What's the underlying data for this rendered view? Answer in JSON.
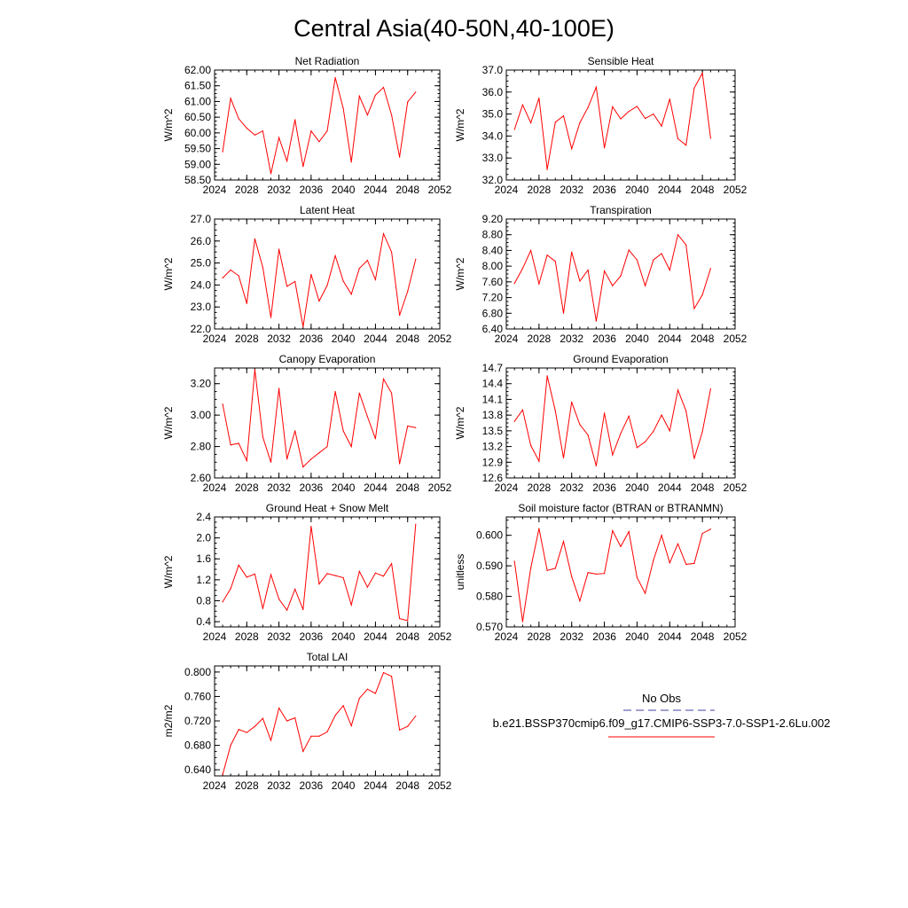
{
  "figure": {
    "title": "Central Asia(40-50N,40-100E)"
  },
  "legend": {
    "entries": [
      {
        "name": "No Obs",
        "color": "#4040a0",
        "dash": "dashed"
      },
      {
        "name": "b.e21.BSSP370cmip6.f09_g17.CMIP6-SSP3-7.0-SSP1-2.6Lu.002",
        "color": "#ff0000",
        "dash": "solid"
      }
    ]
  },
  "chart_data": [
    {
      "id": "net-radiation",
      "type": "line",
      "title": "Net Radiation",
      "ylabel": "W/m^2",
      "xlim": [
        2024,
        2052
      ],
      "xticks": [
        2024,
        2028,
        2032,
        2036,
        2040,
        2044,
        2048,
        2052
      ],
      "ylim": [
        58.5,
        62.0
      ],
      "yticks": [
        58.5,
        59.0,
        59.5,
        60.0,
        60.5,
        61.0,
        61.5,
        62.0
      ],
      "ytick_decimals": 2,
      "x": [
        2025,
        2026,
        2027,
        2028,
        2029,
        2030,
        2031,
        2032,
        2033,
        2034,
        2035,
        2036,
        2037,
        2038,
        2039,
        2040,
        2041,
        2042,
        2043,
        2044,
        2045,
        2046,
        2047,
        2048,
        2049
      ],
      "series": [
        {
          "color": "#ff0000",
          "values": [
            59.4,
            61.1,
            60.45,
            60.15,
            59.93,
            60.06,
            58.7,
            59.85,
            59.1,
            60.42,
            58.93,
            60.06,
            59.72,
            60.06,
            61.76,
            60.78,
            59.07,
            61.17,
            60.57,
            61.2,
            61.45,
            60.57,
            59.23,
            60.98,
            61.3
          ]
        }
      ]
    },
    {
      "id": "sensible-heat",
      "type": "line",
      "title": "Sensible Heat",
      "ylabel": "W/m^2",
      "xlim": [
        2024,
        2052
      ],
      "xticks": [
        2024,
        2028,
        2032,
        2036,
        2040,
        2044,
        2048,
        2052
      ],
      "ylim": [
        32.0,
        37.0
      ],
      "yticks": [
        32.0,
        33.0,
        34.0,
        35.0,
        36.0,
        37.0
      ],
      "ytick_decimals": 1,
      "x": [
        2025,
        2026,
        2027,
        2028,
        2029,
        2030,
        2031,
        2032,
        2033,
        2034,
        2035,
        2036,
        2037,
        2038,
        2039,
        2040,
        2041,
        2042,
        2043,
        2044,
        2045,
        2046,
        2047,
        2048,
        2049
      ],
      "series": [
        {
          "color": "#ff0000",
          "values": [
            34.3,
            35.42,
            34.6,
            35.72,
            32.48,
            34.63,
            34.92,
            33.42,
            34.6,
            35.3,
            36.22,
            33.46,
            35.33,
            34.78,
            35.12,
            35.35,
            34.8,
            35.0,
            34.45,
            35.68,
            33.88,
            33.58,
            36.18,
            36.86,
            33.9
          ]
        }
      ]
    },
    {
      "id": "latent-heat",
      "type": "line",
      "title": "Latent Heat",
      "ylabel": "W/m^2",
      "xlim": [
        2024,
        2052
      ],
      "xticks": [
        2024,
        2028,
        2032,
        2036,
        2040,
        2044,
        2048,
        2052
      ],
      "ylim": [
        22.0,
        27.0
      ],
      "yticks": [
        22.0,
        23.0,
        24.0,
        25.0,
        26.0,
        27.0
      ],
      "ytick_decimals": 1,
      "x": [
        2025,
        2026,
        2027,
        2028,
        2029,
        2030,
        2031,
        2032,
        2033,
        2034,
        2035,
        2036,
        2037,
        2038,
        2039,
        2040,
        2041,
        2042,
        2043,
        2044,
        2045,
        2046,
        2047,
        2048,
        2049
      ],
      "series": [
        {
          "color": "#ff0000",
          "values": [
            24.32,
            24.68,
            24.42,
            23.16,
            26.1,
            24.8,
            22.52,
            25.63,
            23.94,
            24.16,
            22.1,
            24.48,
            23.27,
            23.98,
            25.33,
            24.18,
            23.58,
            24.76,
            25.12,
            24.24,
            26.33,
            25.5,
            22.62,
            23.71,
            25.17
          ]
        }
      ]
    },
    {
      "id": "transpiration",
      "type": "line",
      "title": "Transpiration",
      "ylabel": "W/m^2",
      "xlim": [
        2024,
        2052
      ],
      "xticks": [
        2024,
        2028,
        2032,
        2036,
        2040,
        2044,
        2048,
        2052
      ],
      "ylim": [
        6.4,
        9.2
      ],
      "yticks": [
        6.4,
        6.8,
        7.2,
        7.6,
        8.0,
        8.4,
        8.8,
        9.2
      ],
      "ytick_decimals": 2,
      "x": [
        2025,
        2026,
        2027,
        2028,
        2029,
        2030,
        2031,
        2032,
        2033,
        2034,
        2035,
        2036,
        2037,
        2038,
        2039,
        2040,
        2041,
        2042,
        2043,
        2044,
        2045,
        2046,
        2047,
        2048,
        2049
      ],
      "series": [
        {
          "color": "#ff0000",
          "values": [
            7.56,
            7.94,
            8.4,
            7.55,
            8.28,
            8.12,
            6.8,
            8.36,
            7.62,
            7.9,
            6.6,
            7.88,
            7.5,
            7.75,
            8.41,
            8.16,
            7.5,
            8.16,
            8.32,
            7.9,
            8.8,
            8.54,
            6.92,
            7.27,
            7.94
          ]
        }
      ]
    },
    {
      "id": "canopy-evaporation",
      "type": "line",
      "title": "Canopy Evaporation",
      "ylabel": "W/m^2",
      "xlim": [
        2024,
        2052
      ],
      "xticks": [
        2024,
        2028,
        2032,
        2036,
        2040,
        2044,
        2048,
        2052
      ],
      "ylim": [
        2.6,
        3.3
      ],
      "yticks": [
        2.6,
        2.8,
        3.0,
        3.2
      ],
      "ytick_decimals": 2,
      "x": [
        2025,
        2026,
        2027,
        2028,
        2029,
        2030,
        2031,
        2032,
        2033,
        2034,
        2035,
        2036,
        2037,
        2038,
        2039,
        2040,
        2041,
        2042,
        2043,
        2044,
        2045,
        2046,
        2047,
        2048,
        2049
      ],
      "series": [
        {
          "color": "#ff0000",
          "values": [
            3.07,
            2.81,
            2.82,
            2.71,
            3.29,
            2.86,
            2.7,
            3.17,
            2.72,
            2.9,
            2.67,
            2.72,
            2.76,
            2.8,
            3.15,
            2.9,
            2.8,
            3.14,
            2.99,
            2.85,
            3.23,
            3.14,
            2.69,
            2.93,
            2.92
          ]
        }
      ]
    },
    {
      "id": "ground-evaporation",
      "type": "line",
      "title": "Ground Evaporation",
      "ylabel": "W/m^2",
      "xlim": [
        2024,
        2052
      ],
      "xticks": [
        2024,
        2028,
        2032,
        2036,
        2040,
        2044,
        2048,
        2052
      ],
      "ylim": [
        12.6,
        14.7
      ],
      "yticks": [
        12.6,
        12.9,
        13.2,
        13.5,
        13.8,
        14.1,
        14.4,
        14.7
      ],
      "ytick_decimals": 1,
      "x": [
        2025,
        2026,
        2027,
        2028,
        2029,
        2030,
        2031,
        2032,
        2033,
        2034,
        2035,
        2036,
        2037,
        2038,
        2039,
        2040,
        2041,
        2042,
        2043,
        2044,
        2045,
        2046,
        2047,
        2048,
        2049
      ],
      "series": [
        {
          "color": "#ff0000",
          "values": [
            13.68,
            13.9,
            13.22,
            12.92,
            14.55,
            13.88,
            12.98,
            14.05,
            13.62,
            13.42,
            12.83,
            13.84,
            13.04,
            13.45,
            13.78,
            13.18,
            13.29,
            13.49,
            13.8,
            13.5,
            14.28,
            13.88,
            12.97,
            13.48,
            14.3
          ]
        }
      ]
    },
    {
      "id": "ground-heat-snow-melt",
      "type": "line",
      "title": "Ground Heat + Snow Melt",
      "ylabel": "W/m^2",
      "xlim": [
        2024,
        2052
      ],
      "xticks": [
        2024,
        2028,
        2032,
        2036,
        2040,
        2044,
        2048,
        2052
      ],
      "ylim": [
        0.3,
        2.4
      ],
      "yticks": [
        0.4,
        0.8,
        1.2,
        1.6,
        2.0,
        2.4
      ],
      "ytick_decimals": 1,
      "x": [
        2025,
        2026,
        2027,
        2028,
        2029,
        2030,
        2031,
        2032,
        2033,
        2034,
        2035,
        2036,
        2037,
        2038,
        2039,
        2040,
        2041,
        2042,
        2043,
        2044,
        2045,
        2046,
        2047,
        2048,
        2049
      ],
      "series": [
        {
          "color": "#ff0000",
          "values": [
            0.78,
            1.03,
            1.48,
            1.25,
            1.31,
            0.65,
            1.3,
            0.83,
            0.62,
            1.02,
            0.63,
            2.22,
            1.12,
            1.32,
            1.28,
            1.24,
            0.72,
            1.36,
            1.06,
            1.33,
            1.27,
            1.51,
            0.46,
            0.42,
            2.26
          ]
        }
      ]
    },
    {
      "id": "soil-moisture-factor",
      "type": "line",
      "title": "Soil moisture factor (BTRAN or BTRANMN)",
      "ylabel": "unitless",
      "xlim": [
        2024,
        2052
      ],
      "xticks": [
        2024,
        2028,
        2032,
        2036,
        2040,
        2044,
        2048,
        2052
      ],
      "ylim": [
        0.57,
        0.606
      ],
      "yticks": [
        0.57,
        0.58,
        0.59,
        0.6
      ],
      "ytick_decimals": 3,
      "x": [
        2025,
        2026,
        2027,
        2028,
        2029,
        2030,
        2031,
        2032,
        2033,
        2034,
        2035,
        2036,
        2037,
        2038,
        2039,
        2040,
        2041,
        2042,
        2043,
        2044,
        2045,
        2046,
        2047,
        2048,
        2049
      ],
      "series": [
        {
          "color": "#ff0000",
          "values": [
            0.5915,
            0.5717,
            0.5893,
            0.6022,
            0.5885,
            0.5892,
            0.598,
            0.5865,
            0.5785,
            0.5878,
            0.5873,
            0.5875,
            0.6015,
            0.5963,
            0.6012,
            0.5862,
            0.581,
            0.5918,
            0.6,
            0.591,
            0.5972,
            0.5905,
            0.5908,
            0.6006,
            0.602
          ]
        }
      ]
    },
    {
      "id": "total-lai",
      "type": "line",
      "title": "Total LAI",
      "ylabel": "m2/m2",
      "xlim": [
        2024,
        2052
      ],
      "xticks": [
        2024,
        2028,
        2032,
        2036,
        2040,
        2044,
        2048,
        2052
      ],
      "ylim": [
        0.63,
        0.81
      ],
      "yticks": [
        0.64,
        0.68,
        0.72,
        0.76,
        0.8
      ],
      "ytick_decimals": 3,
      "x": [
        2025,
        2026,
        2027,
        2028,
        2029,
        2030,
        2031,
        2032,
        2033,
        2034,
        2035,
        2036,
        2037,
        2038,
        2039,
        2040,
        2041,
        2042,
        2043,
        2044,
        2045,
        2046,
        2047,
        2048,
        2049
      ],
      "series": [
        {
          "color": "#ff0000",
          "values": [
            0.632,
            0.68,
            0.706,
            0.701,
            0.711,
            0.724,
            0.688,
            0.741,
            0.72,
            0.725,
            0.67,
            0.695,
            0.695,
            0.702,
            0.729,
            0.745,
            0.712,
            0.757,
            0.772,
            0.765,
            0.799,
            0.793,
            0.705,
            0.711,
            0.728
          ]
        }
      ]
    }
  ]
}
